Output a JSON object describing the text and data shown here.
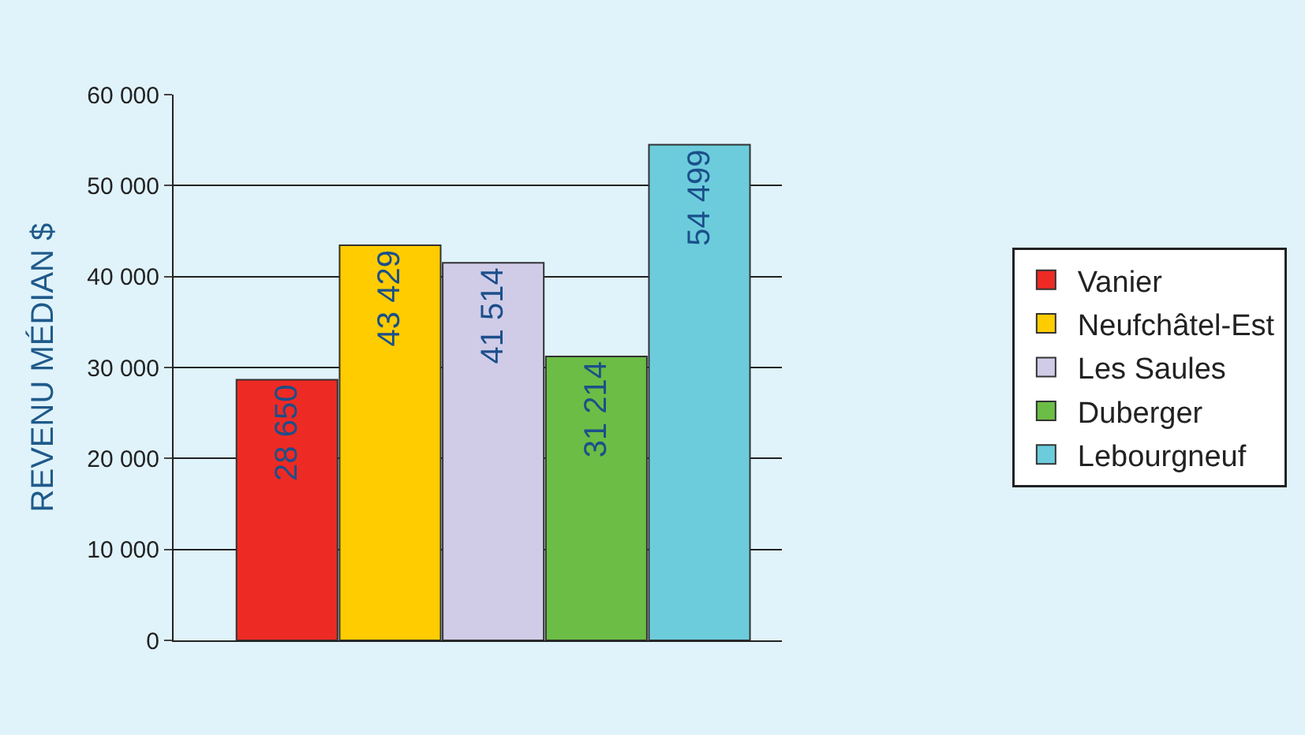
{
  "chart_data": {
    "type": "bar",
    "ylabel": "REVENU MÉDIAN $",
    "categories": [
      null,
      null,
      null,
      null,
      null
    ],
    "series": [
      {
        "name": "Vanier",
        "color": "#ee2a24",
        "values": [
          28650,
          null,
          null,
          null,
          null
        ],
        "value_labels": [
          "28 650",
          null,
          null,
          null,
          null
        ]
      },
      {
        "name": "Neufchâtel-Est",
        "color": "#ffcc00",
        "values": [
          null,
          43429,
          null,
          null,
          null
        ],
        "value_labels": [
          null,
          "43 429",
          null,
          null,
          null
        ]
      },
      {
        "name": "Les Saules",
        "color": "#d0cce8",
        "values": [
          null,
          null,
          41514,
          null,
          null
        ],
        "value_labels": [
          null,
          null,
          "41 514",
          null,
          null
        ]
      },
      {
        "name": "Duberger",
        "color": "#6cbd45",
        "values": [
          null,
          null,
          null,
          31214,
          null
        ],
        "value_labels": [
          null,
          null,
          null,
          "31 214",
          null
        ]
      },
      {
        "name": "Lebourgneuf",
        "color": "#6cccdc",
        "values": [
          null,
          null,
          null,
          null,
          54499
        ],
        "value_labels": [
          null,
          null,
          null,
          null,
          "54 499"
        ]
      }
    ],
    "ylim": [
      0,
      60000
    ],
    "yticks": [
      {
        "value": 0,
        "label": "0"
      },
      {
        "value": 10000,
        "label": "10 000"
      },
      {
        "value": 20000,
        "label": "20 000"
      },
      {
        "value": 30000,
        "label": "30 000"
      },
      {
        "value": 40000,
        "label": "40 000"
      },
      {
        "value": 50000,
        "label": "50 000"
      },
      {
        "value": 60000,
        "label": "60 000"
      }
    ],
    "grid": "y",
    "legend": "right",
    "tick_labels": "y"
  }
}
